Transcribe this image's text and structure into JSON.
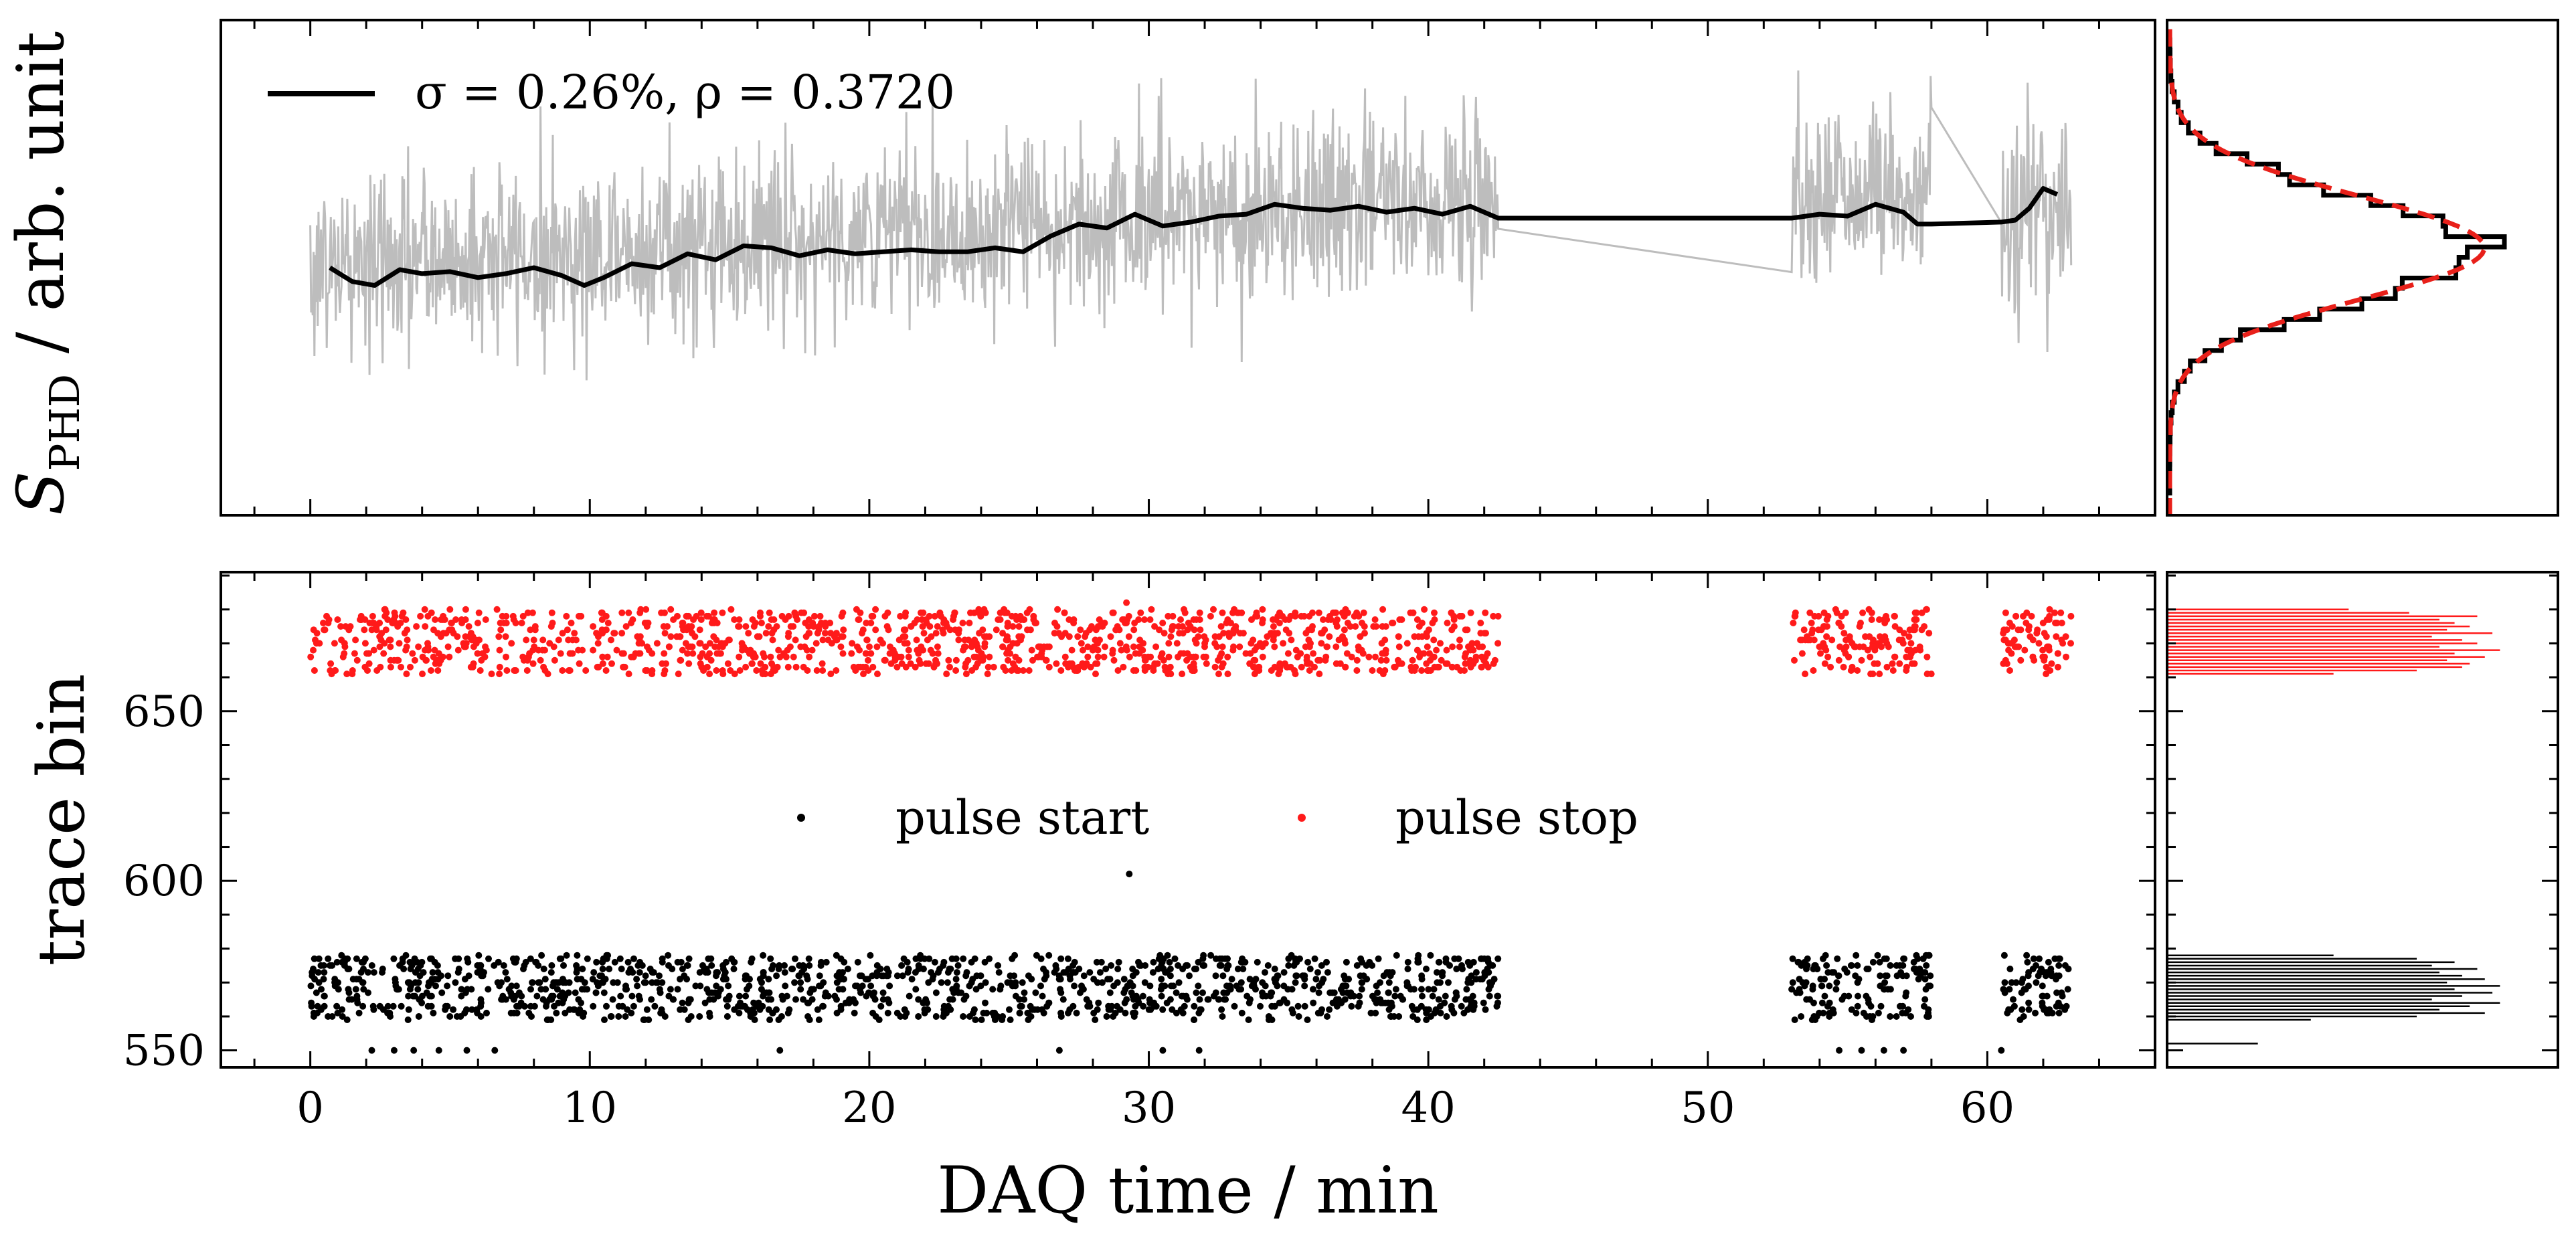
{
  "colors": {
    "signal_raw": "#bdbdbd",
    "signal_avg": "#000000",
    "pulse_start": "#000000",
    "pulse_stop": "#ff1a1a",
    "fit_curve": "#e8201a",
    "axes": "#000000",
    "background": "#ffffff"
  },
  "chart_data": [
    {
      "id": "signal-vs-time",
      "type": "line",
      "title": "",
      "xlabel": "",
      "ylabel_symbol": "S",
      "ylabel_subscript": "PHD",
      "ylabel_unit": " / arb. unit",
      "xlim": [
        -3.2,
        66.0
      ],
      "ylim": [
        0.9865,
        1.0115
      ],
      "legend": {
        "label": "σ = 0.26%, ρ = 0.3720",
        "placement": "top-left"
      },
      "series": [
        {
          "name": "raw",
          "color": "#bdbdbd",
          "segments": [
            {
              "t_start": 0.0,
              "t_end": 42.5,
              "baseline": 0.999,
              "baseline_end": 1.0026,
              "spread": 0.0042
            },
            {
              "t_start": 53.0,
              "t_end": 58.0,
              "baseline": 1.0027,
              "baseline_end": 1.003,
              "spread": 0.004
            },
            {
              "t_start": 60.5,
              "t_end": 63.0,
              "baseline": 1.001,
              "baseline_end": 1.0032,
              "spread": 0.005
            }
          ]
        },
        {
          "name": "moving average",
          "color": "#000000",
          "x": [
            0.7,
            1.5,
            2.3,
            3.2,
            4.0,
            5.0,
            6.0,
            7.0,
            8.0,
            9.0,
            9.8,
            10.5,
            11.5,
            12.5,
            13.5,
            14.5,
            15.5,
            16.5,
            17.5,
            18.5,
            19.5,
            20.5,
            21.5,
            22.5,
            23.5,
            24.5,
            25.5,
            26.5,
            27.5,
            28.5,
            29.5,
            30.5,
            31.5,
            32.5,
            33.5,
            34.5,
            35.5,
            36.5,
            37.5,
            38.5,
            39.5,
            40.5,
            41.5,
            42.5,
            53.0,
            54.0,
            55.0,
            56.0,
            57.0,
            57.5,
            58.0,
            60.5,
            61.0,
            61.5,
            62.0,
            62.5
          ],
          "y": [
            0.999,
            0.9983,
            0.9981,
            0.9989,
            0.9987,
            0.9988,
            0.9985,
            0.9987,
            0.999,
            0.9986,
            0.9981,
            0.9985,
            0.9992,
            0.999,
            0.9997,
            0.9994,
            1.0001,
            1.0,
            0.9996,
            0.9999,
            0.9997,
            0.9998,
            0.9999,
            0.9998,
            0.9998,
            1.0,
            0.9998,
            1.0006,
            1.0012,
            1.001,
            1.0017,
            1.0011,
            1.0013,
            1.0016,
            1.0017,
            1.0022,
            1.002,
            1.0019,
            1.0021,
            1.0018,
            1.002,
            1.0017,
            1.0021,
            1.0015,
            1.0015,
            1.0017,
            1.0016,
            1.0022,
            1.0018,
            1.0012,
            1.0012,
            1.0013,
            1.0014,
            1.002,
            1.003,
            1.0027
          ]
        }
      ],
      "marginal_histogram": {
        "type": "histogram",
        "orientation": "horizontal",
        "fit": {
          "mean": 1.0,
          "sigma": 0.0026,
          "color": "#e8201a",
          "style": "dashed"
        }
      }
    },
    {
      "id": "trace-bin-vs-time",
      "type": "scatter",
      "xlabel": "DAQ time / min",
      "ylabel": "trace bin",
      "xlim": [
        -3.2,
        66.0
      ],
      "ylim": [
        545,
        691
      ],
      "xticks": [
        "0",
        "10",
        "20",
        "30",
        "40",
        "50",
        "60"
      ],
      "xtick_values": [
        0,
        10,
        20,
        30,
        40,
        50,
        60
      ],
      "yticks": [
        "550",
        "600",
        "650"
      ],
      "ytick_values": [
        550,
        600,
        650
      ],
      "legend": {
        "placement": "center",
        "entries": [
          "pulse start",
          "pulse stop"
        ]
      },
      "series": [
        {
          "name": "pulse start",
          "color": "#000000",
          "y_range": [
            559,
            578
          ],
          "outliers_x": [
            2.2,
            3.0,
            3.7,
            4.6,
            5.6,
            6.6,
            16.8,
            26.8,
            30.5,
            31.8,
            54.7,
            55.5,
            56.3,
            57.0,
            60.5
          ],
          "outlier_y": 550,
          "extra_point": {
            "x": 29.3,
            "y": 602
          }
        },
        {
          "name": "pulse stop",
          "color": "#ff1a1a",
          "y_range": [
            661,
            680
          ],
          "extra_point": {
            "x": 29.2,
            "y": 682
          }
        }
      ],
      "time_segments": [
        [
          0.0,
          42.5
        ],
        [
          53.0,
          58.0
        ],
        [
          60.5,
          63.0
        ]
      ],
      "marginal_histogram": {
        "type": "histogram",
        "orientation": "horizontal",
        "start_bins_y": [
          552,
          559,
          560,
          561,
          562,
          563,
          564,
          565,
          566,
          567,
          568,
          569,
          570,
          571,
          572,
          573,
          574,
          575,
          576,
          577,
          578
        ],
        "start_counts": [
          12,
          19,
          33,
          42,
          36,
          40,
          44,
          35,
          39,
          43,
          38,
          44,
          37,
          42,
          39,
          36,
          41,
          35,
          38,
          33,
          22
        ],
        "stop_bins_y": [
          661,
          662,
          663,
          664,
          665,
          666,
          667,
          668,
          669,
          670,
          671,
          672,
          673,
          674,
          675,
          676,
          677,
          678,
          679,
          680
        ],
        "stop_counts": [
          22,
          33,
          39,
          40,
          37,
          42,
          38,
          44,
          36,
          41,
          39,
          35,
          43,
          37,
          40,
          38,
          36,
          41,
          32,
          24
        ]
      }
    }
  ]
}
